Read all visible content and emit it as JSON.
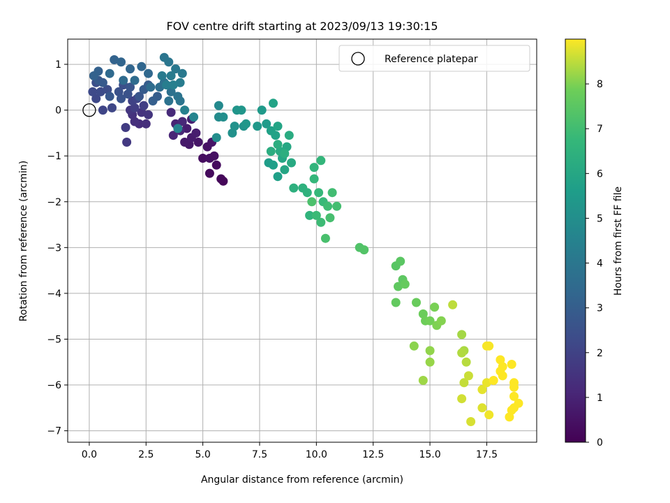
{
  "chart_data": {
    "type": "scatter",
    "title": "FOV centre drift starting at 2023/09/13 19:30:15",
    "xlabel": "Angular distance from reference (arcmin)",
    "ylabel": "Rotation from reference (arcmin)",
    "xlim": [
      -0.95,
      19.7
    ],
    "ylim": [
      -7.25,
      1.55
    ],
    "xticks": [
      "0.0",
      "2.5",
      "5.0",
      "7.5",
      "10.0",
      "12.5",
      "15.0",
      "17.5"
    ],
    "xtick_values": [
      0,
      2.5,
      5,
      7.5,
      10,
      12.5,
      15,
      17.5
    ],
    "yticks": [
      "1",
      "0",
      "−1",
      "−2",
      "−3",
      "−4",
      "−5",
      "−6",
      "−7"
    ],
    "ytick_values": [
      1,
      0,
      -1,
      -2,
      -3,
      -4,
      -5,
      -6,
      -7
    ],
    "grid": true,
    "legend": {
      "label": "Reference platepar",
      "placement": "top-right"
    },
    "reference_point": {
      "x": 0,
      "y": 0
    },
    "colorbar": {
      "label": "Hours from first FF file",
      "range": [
        0,
        9
      ],
      "ticks": [
        "0",
        "1",
        "2",
        "3",
        "4",
        "5",
        "6",
        "7",
        "8"
      ],
      "tick_values": [
        0,
        1,
        2,
        3,
        4,
        5,
        6,
        7,
        8
      ],
      "colormap": "viridis"
    },
    "points": [
      [
        5.9,
        -1.55,
        0.15
      ],
      [
        5.8,
        -1.5,
        0.2
      ],
      [
        5.3,
        -1.38,
        0.25
      ],
      [
        5.6,
        -1.2,
        0.3
      ],
      [
        5.0,
        -1.05,
        0.35
      ],
      [
        5.3,
        -1.05,
        0.4
      ],
      [
        5.5,
        -1.0,
        0.45
      ],
      [
        5.2,
        -0.8,
        0.5
      ],
      [
        5.4,
        -0.7,
        0.55
      ],
      [
        4.8,
        -0.7,
        0.6
      ],
      [
        4.4,
        -0.75,
        0.65
      ],
      [
        4.2,
        -0.7,
        0.7
      ],
      [
        4.5,
        -0.6,
        0.75
      ],
      [
        4.7,
        -0.5,
        0.8
      ],
      [
        4.3,
        -0.4,
        0.85
      ],
      [
        4.5,
        -0.2,
        0.9
      ],
      [
        3.8,
        -0.3,
        1.0
      ],
      [
        3.7,
        -0.55,
        1.05
      ],
      [
        4.0,
        -0.45,
        1.1
      ],
      [
        4.1,
        -0.25,
        1.15
      ],
      [
        3.6,
        -0.05,
        1.2
      ],
      [
        2.2,
        -0.3,
        1.3
      ],
      [
        2.5,
        -0.3,
        1.35
      ],
      [
        2.0,
        -0.25,
        1.4
      ],
      [
        1.9,
        -0.1,
        1.45
      ],
      [
        2.3,
        -0.05,
        1.5
      ],
      [
        2.6,
        -0.1,
        1.55
      ],
      [
        1.8,
        0.0,
        1.6
      ],
      [
        1.65,
        -0.7,
        1.7
      ],
      [
        1.6,
        -0.38,
        1.8
      ],
      [
        2.0,
        0.05,
        1.85
      ],
      [
        2.4,
        0.1,
        1.9
      ],
      [
        1.9,
        0.2,
        2.0
      ],
      [
        2.1,
        0.25,
        2.05
      ],
      [
        0.6,
        0.0,
        2.1
      ],
      [
        1.0,
        0.05,
        2.15
      ],
      [
        0.3,
        0.25,
        2.2
      ],
      [
        0.15,
        0.4,
        2.25
      ],
      [
        0.5,
        0.4,
        2.3
      ],
      [
        0.8,
        0.45,
        2.35
      ],
      [
        0.3,
        0.6,
        2.4
      ],
      [
        1.5,
        0.55,
        2.45
      ],
      [
        1.3,
        0.4,
        2.5
      ],
      [
        1.7,
        0.35,
        2.55
      ],
      [
        1.4,
        0.25,
        2.6
      ],
      [
        1.8,
        0.5,
        2.65
      ],
      [
        2.2,
        0.3,
        2.7
      ],
      [
        0.9,
        0.3,
        2.75
      ],
      [
        0.4,
        0.65,
        2.8
      ],
      [
        0.6,
        0.6,
        2.85
      ],
      [
        2.4,
        0.45,
        2.9
      ],
      [
        2.6,
        0.55,
        2.95
      ],
      [
        3.0,
        0.3,
        3.0
      ],
      [
        2.8,
        0.2,
        3.05
      ],
      [
        0.4,
        0.85,
        3.1
      ],
      [
        0.2,
        0.75,
        3.15
      ],
      [
        1.1,
        1.1,
        3.2
      ],
      [
        1.4,
        1.05,
        3.25
      ],
      [
        1.8,
        0.9,
        3.3
      ],
      [
        2.3,
        0.95,
        3.35
      ],
      [
        2.6,
        0.8,
        3.4
      ],
      [
        0.9,
        0.8,
        3.45
      ],
      [
        1.5,
        0.65,
        3.5
      ],
      [
        2.0,
        0.65,
        3.55
      ],
      [
        2.7,
        0.5,
        3.6
      ],
      [
        3.1,
        0.5,
        3.65
      ],
      [
        3.3,
        0.6,
        3.7
      ],
      [
        3.6,
        0.4,
        3.75
      ],
      [
        3.5,
        0.2,
        3.8
      ],
      [
        3.9,
        0.3,
        3.85
      ],
      [
        4.0,
        0.2,
        3.9
      ],
      [
        3.3,
        1.15,
        3.95
      ],
      [
        3.5,
        1.05,
        4.0
      ],
      [
        3.8,
        0.9,
        4.05
      ],
      [
        4.1,
        0.8,
        4.1
      ],
      [
        3.2,
        0.75,
        4.15
      ],
      [
        3.6,
        0.75,
        4.2
      ],
      [
        4.0,
        0.6,
        4.25
      ],
      [
        3.4,
        0.55,
        4.3
      ],
      [
        3.7,
        0.55,
        4.35
      ],
      [
        4.2,
        0.0,
        4.4
      ],
      [
        3.9,
        -0.4,
        4.5
      ],
      [
        4.6,
        -0.15,
        4.6
      ],
      [
        5.7,
        0.1,
        4.8
      ],
      [
        5.7,
        -0.15,
        4.85
      ],
      [
        5.6,
        -0.6,
        4.95
      ],
      [
        5.9,
        -0.15,
        5.0
      ],
      [
        6.3,
        -0.5,
        5.1
      ],
      [
        6.4,
        -0.35,
        5.15
      ],
      [
        6.8,
        -0.35,
        5.2
      ],
      [
        6.5,
        0.0,
        5.25
      ],
      [
        6.7,
        0.0,
        5.3
      ],
      [
        6.9,
        -0.3,
        5.35
      ],
      [
        7.4,
        -0.35,
        5.4
      ],
      [
        7.6,
        0.0,
        5.45
      ],
      [
        7.8,
        -0.3,
        5.5
      ],
      [
        7.9,
        -1.15,
        5.6
      ],
      [
        8.1,
        -1.2,
        5.65
      ],
      [
        8.3,
        -1.45,
        5.7
      ],
      [
        8.0,
        -0.45,
        5.75
      ],
      [
        8.2,
        -0.55,
        5.8
      ],
      [
        8.1,
        0.15,
        5.85
      ],
      [
        8.3,
        -0.35,
        5.9
      ],
      [
        8.6,
        -1.3,
        5.95
      ],
      [
        8.5,
        -1.05,
        6.0
      ],
      [
        8.7,
        -0.8,
        6.05
      ],
      [
        8.9,
        -1.15,
        6.1
      ],
      [
        8.4,
        -0.9,
        6.15
      ],
      [
        8.8,
        -0.55,
        6.2
      ],
      [
        8.0,
        -0.9,
        6.25
      ],
      [
        8.3,
        -0.75,
        6.3
      ],
      [
        8.6,
        -0.95,
        6.35
      ],
      [
        9.0,
        -1.7,
        6.4
      ],
      [
        9.4,
        -1.7,
        6.45
      ],
      [
        9.6,
        -1.8,
        6.5
      ],
      [
        9.7,
        -2.3,
        6.55
      ],
      [
        9.9,
        -1.25,
        6.6
      ],
      [
        10.2,
        -1.1,
        6.65
      ],
      [
        9.9,
        -1.5,
        6.7
      ],
      [
        10.1,
        -1.8,
        6.75
      ],
      [
        10.3,
        -2.0,
        6.8
      ],
      [
        10.0,
        -2.3,
        6.85
      ],
      [
        10.2,
        -2.45,
        6.9
      ],
      [
        10.5,
        -2.1,
        6.95
      ],
      [
        10.7,
        -1.8,
        7.0
      ],
      [
        10.9,
        -2.1,
        7.05
      ],
      [
        10.6,
        -2.35,
        7.1
      ],
      [
        10.4,
        -2.8,
        7.15
      ],
      [
        9.8,
        -2.0,
        7.2
      ],
      [
        11.9,
        -3.0,
        7.3
      ],
      [
        12.1,
        -3.05,
        7.35
      ],
      [
        13.5,
        -3.4,
        7.45
      ],
      [
        13.7,
        -3.3,
        7.5
      ],
      [
        13.8,
        -3.7,
        7.55
      ],
      [
        13.6,
        -3.85,
        7.6
      ],
      [
        13.5,
        -4.2,
        7.65
      ],
      [
        13.9,
        -3.8,
        7.7
      ],
      [
        14.4,
        -4.2,
        7.75
      ],
      [
        14.7,
        -4.45,
        7.8
      ],
      [
        14.8,
        -4.6,
        7.85
      ],
      [
        15.0,
        -4.6,
        7.9
      ],
      [
        15.2,
        -4.3,
        7.95
      ],
      [
        15.3,
        -4.7,
        8.0
      ],
      [
        15.5,
        -4.6,
        8.05
      ],
      [
        14.3,
        -5.15,
        8.1
      ],
      [
        15.0,
        -5.25,
        8.15
      ],
      [
        15.0,
        -5.5,
        8.2
      ],
      [
        14.7,
        -5.9,
        8.25
      ],
      [
        16.4,
        -4.9,
        8.3
      ],
      [
        16.5,
        -5.25,
        8.35
      ],
      [
        16.4,
        -5.3,
        8.4
      ],
      [
        16.6,
        -5.5,
        8.45
      ],
      [
        16.0,
        -4.25,
        8.5
      ],
      [
        16.5,
        -5.95,
        8.55
      ],
      [
        16.7,
        -5.8,
        8.6
      ],
      [
        16.4,
        -6.3,
        8.65
      ],
      [
        16.8,
        -6.8,
        8.7
      ],
      [
        17.3,
        -6.5,
        8.75
      ],
      [
        17.3,
        -6.1,
        8.8
      ],
      [
        17.5,
        -5.95,
        8.85
      ],
      [
        17.6,
        -6.65,
        8.9
      ],
      [
        17.6,
        -5.15,
        8.95
      ],
      [
        17.5,
        -5.15,
        8.95
      ],
      [
        17.8,
        -5.9,
        9.0
      ],
      [
        18.1,
        -5.45,
        9.0
      ],
      [
        18.2,
        -5.8,
        9.0
      ],
      [
        18.2,
        -5.6,
        9.0
      ],
      [
        18.1,
        -5.7,
        9.0
      ],
      [
        18.6,
        -5.55,
        9.0
      ],
      [
        18.5,
        -6.7,
        9.0
      ],
      [
        18.7,
        -5.95,
        9.0
      ],
      [
        18.7,
        -6.05,
        9.0
      ],
      [
        18.7,
        -6.25,
        9.0
      ],
      [
        18.7,
        -6.5,
        9.0
      ],
      [
        18.9,
        -6.4,
        9.0
      ],
      [
        18.6,
        -6.55,
        9.0
      ]
    ]
  }
}
